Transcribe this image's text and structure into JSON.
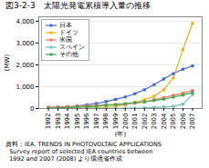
{
  "chart_data": {
    "type": "line",
    "title": "図3-2-3　太陽光発電累積導入量の推移",
    "xlabel": "(年)",
    "ylabel": "(MW)",
    "annotations": [
      "資料：IEA, TRENDS IN PHOTOVOLTAIC APPLICATIONS",
      "  Survey report of selected IEA countries between",
      "  1992 and 2007 (2008) より環境省作成"
    ],
    "x": [
      1992,
      1993,
      1994,
      1995,
      1996,
      1997,
      1998,
      1999,
      2000,
      2001,
      2002,
      2003,
      2004,
      2005,
      2006,
      2007
    ],
    "xlim": [
      1991,
      2008
    ],
    "xticks": [
      1992,
      1993,
      1994,
      1995,
      1996,
      1997,
      1998,
      1999,
      2000,
      2001,
      2002,
      2003,
      2004,
      2005,
      2006,
      2007
    ],
    "ylim": [
      0,
      4200
    ],
    "yticks": [
      0,
      {
        "value": 1000,
        "label": "1,000"
      },
      {
        "value": 2000,
        "label": "2,000"
      },
      {
        "value": 3000,
        "label": "3,000"
      },
      {
        "value": 4000,
        "label": "4,000"
      }
    ],
    "grid": true,
    "legend": "upper left",
    "marker": "square",
    "series": [
      {
        "name": "日本",
        "values": [
          19,
          30,
          60,
          110,
          170,
          230,
          320,
          420,
          530,
          680,
          860,
          1090,
          1350,
          1600,
          1800,
          1950
        ]
      },
      {
        "name": "ドイツ",
        "values": [
          1,
          2,
          4,
          8,
          20,
          40,
          60,
          100,
          180,
          280,
          400,
          560,
          860,
          1400,
          2700,
          3900
        ]
      },
      {
        "name": "米国",
        "values": [
          60,
          75,
          90,
          105,
          120,
          140,
          160,
          180,
          200,
          250,
          300,
          400,
          500,
          600,
          700,
          830
        ]
      },
      {
        "name": "スペイン",
        "values": [
          1,
          1,
          2,
          2,
          3,
          4,
          5,
          8,
          12,
          18,
          30,
          50,
          70,
          100,
          200,
          640
        ]
      },
      {
        "name": "その他",
        "values": [
          20,
          30,
          45,
          65,
          80,
          110,
          150,
          180,
          220,
          270,
          310,
          370,
          430,
          520,
          620,
          730
        ]
      }
    ]
  }
}
